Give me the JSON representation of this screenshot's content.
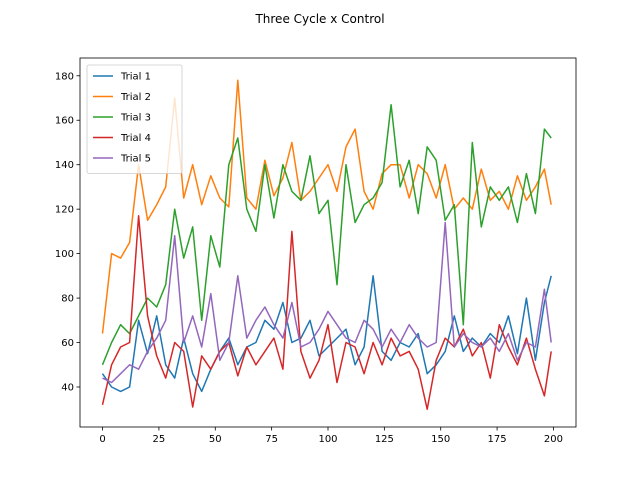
{
  "chart_data": {
    "type": "line",
    "title": "Three Cycle x Control",
    "xlabel": "",
    "ylabel": "",
    "xlim": [
      -10,
      210
    ],
    "ylim": [
      22,
      188
    ],
    "xticks": [
      0,
      25,
      50,
      75,
      100,
      125,
      150,
      175,
      200
    ],
    "yticks": [
      40,
      60,
      80,
      100,
      120,
      140,
      160,
      180
    ],
    "grid": false,
    "legend_position": "top-left",
    "series": [
      {
        "name": "Trial 1",
        "color": "#1f77b4",
        "x": [
          0,
          4,
          8,
          12,
          16,
          20,
          24,
          28,
          32,
          36,
          40,
          44,
          48,
          52,
          56,
          60,
          64,
          68,
          72,
          76,
          80,
          84,
          88,
          92,
          96,
          100,
          104,
          108,
          112,
          116,
          120,
          124,
          128,
          132,
          136,
          140,
          144,
          148,
          152,
          156,
          160,
          164,
          168,
          172,
          176,
          180,
          184,
          188,
          192,
          196,
          199
        ],
        "values": [
          46,
          40,
          38,
          40,
          70,
          55,
          72,
          50,
          44,
          62,
          46,
          38,
          48,
          56,
          62,
          50,
          58,
          60,
          70,
          66,
          78,
          60,
          62,
          70,
          54,
          58,
          62,
          66,
          50,
          58,
          90,
          56,
          52,
          60,
          58,
          64,
          46,
          50,
          56,
          72,
          56,
          62,
          58,
          64,
          60,
          72,
          55,
          80,
          52,
          78,
          90
        ]
      },
      {
        "name": "Trial 2",
        "color": "#ff7f0e",
        "x": [
          0,
          4,
          8,
          12,
          16,
          20,
          24,
          28,
          32,
          36,
          40,
          44,
          48,
          52,
          56,
          60,
          64,
          68,
          72,
          76,
          80,
          84,
          88,
          92,
          96,
          100,
          104,
          108,
          112,
          116,
          120,
          124,
          128,
          132,
          136,
          140,
          144,
          148,
          152,
          156,
          160,
          164,
          168,
          172,
          176,
          180,
          184,
          188,
          192,
          196,
          199
        ],
        "values": [
          64,
          100,
          98,
          105,
          140,
          115,
          122,
          130,
          170,
          125,
          140,
          122,
          135,
          125,
          121,
          178,
          125,
          120,
          142,
          126,
          134,
          150,
          124,
          128,
          134,
          140,
          128,
          148,
          156,
          128,
          120,
          136,
          140,
          140,
          125,
          140,
          136,
          125,
          140,
          120,
          125,
          120,
          138,
          124,
          128,
          120,
          135,
          124,
          130,
          138,
          122
        ]
      },
      {
        "name": "Trial 3",
        "color": "#2ca02c",
        "x": [
          0,
          4,
          8,
          12,
          16,
          20,
          24,
          28,
          32,
          36,
          40,
          44,
          48,
          52,
          56,
          60,
          64,
          68,
          72,
          76,
          80,
          84,
          88,
          92,
          96,
          100,
          104,
          108,
          112,
          116,
          120,
          124,
          128,
          132,
          136,
          140,
          144,
          148,
          152,
          156,
          160,
          164,
          168,
          172,
          176,
          180,
          184,
          188,
          192,
          196,
          199
        ],
        "values": [
          50,
          60,
          68,
          64,
          72,
          80,
          76,
          86,
          120,
          98,
          112,
          70,
          108,
          94,
          140,
          152,
          120,
          110,
          140,
          116,
          140,
          128,
          124,
          144,
          118,
          124,
          86,
          140,
          114,
          122,
          125,
          132,
          167,
          130,
          142,
          118,
          148,
          142,
          115,
          122,
          68,
          150,
          112,
          130,
          124,
          130,
          114,
          136,
          118,
          156,
          152
        ]
      },
      {
        "name": "Trial 4",
        "color": "#d62728",
        "x": [
          0,
          4,
          8,
          12,
          16,
          20,
          24,
          28,
          32,
          36,
          40,
          44,
          48,
          52,
          56,
          60,
          64,
          68,
          72,
          76,
          80,
          84,
          88,
          92,
          96,
          100,
          104,
          108,
          112,
          116,
          120,
          124,
          128,
          132,
          136,
          140,
          144,
          148,
          152,
          156,
          160,
          164,
          168,
          172,
          176,
          180,
          184,
          188,
          192,
          196,
          199
        ],
        "values": [
          32,
          50,
          58,
          60,
          117,
          72,
          54,
          44,
          60,
          56,
          31,
          54,
          48,
          56,
          60,
          45,
          58,
          50,
          56,
          62,
          48,
          110,
          56,
          44,
          52,
          68,
          42,
          60,
          58,
          46,
          60,
          50,
          62,
          54,
          56,
          48,
          30,
          52,
          62,
          58,
          66,
          54,
          60,
          44,
          68,
          58,
          50,
          62,
          48,
          36,
          56
        ]
      },
      {
        "name": "Trial 5",
        "color": "#9467bd",
        "x": [
          0,
          4,
          8,
          12,
          16,
          20,
          24,
          28,
          32,
          36,
          40,
          44,
          48,
          52,
          56,
          60,
          64,
          68,
          72,
          76,
          80,
          84,
          88,
          92,
          96,
          100,
          104,
          108,
          112,
          116,
          120,
          124,
          128,
          132,
          136,
          140,
          144,
          148,
          152,
          156,
          160,
          164,
          168,
          172,
          176,
          180,
          184,
          188,
          192,
          196,
          199
        ],
        "values": [
          44,
          42,
          46,
          50,
          48,
          56,
          62,
          70,
          108,
          60,
          72,
          58,
          82,
          52,
          60,
          90,
          62,
          70,
          76,
          68,
          62,
          78,
          58,
          60,
          66,
          74,
          68,
          62,
          60,
          70,
          66,
          58,
          66,
          60,
          68,
          62,
          58,
          60,
          114,
          58,
          64,
          60,
          58,
          62,
          56,
          64,
          52,
          60,
          58,
          84,
          60
        ]
      }
    ]
  }
}
